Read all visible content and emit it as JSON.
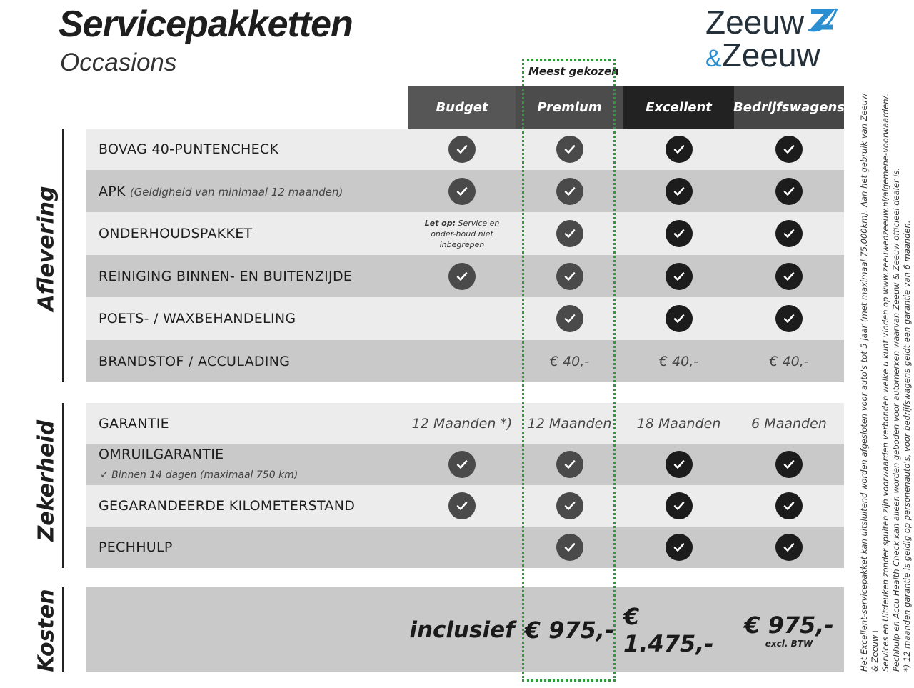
{
  "header": {
    "title": "Servicepakketten",
    "subtitle": "Occasions",
    "logo_text": "Zeeuw & Zeeuw",
    "most_chosen": "Meest gekozen"
  },
  "columns": [
    "Budget",
    "Premium",
    "Excellent",
    "Bedrijfswagens"
  ],
  "colors": {
    "premium_frame": "#2e9a3a",
    "logo_blue": "#2a8ed0",
    "logo_dark": "#24303a"
  },
  "sections": {
    "aflevering": "Aflevering",
    "zekerheid": "Zekerheid",
    "kosten": "Kosten"
  },
  "rows": [
    {
      "label": "BOVAG 40-PUNTENCHECK",
      "cells": [
        true,
        true,
        true,
        true
      ]
    },
    {
      "label": "APK",
      "sub": "(Geldigheid van minimaal 12 maanden)",
      "cells": [
        true,
        true,
        true,
        true
      ]
    },
    {
      "label": "ONDERHOUDSPAKKET",
      "note_bold": "Let op:",
      "note": "Service en onder-houd niet inbegrepen",
      "cells": [
        false,
        true,
        true,
        true
      ]
    },
    {
      "label": "REINIGING BINNEN- EN BUITENZIJDE",
      "cells": [
        true,
        true,
        true,
        true
      ]
    },
    {
      "label": "POETS- / WAXBEHANDELING",
      "cells": [
        false,
        true,
        true,
        true
      ]
    },
    {
      "label": "BRANDSTOF / ACCULADING",
      "cells": [
        "",
        "€ 40,-",
        "€ 40,-",
        "€ 40,-"
      ]
    },
    {
      "label": "GARANTIE",
      "cells": [
        "12 Maanden *)",
        "12 Maanden",
        "18 Maanden",
        "6 Maanden"
      ]
    },
    {
      "label": "OMRUILGARANTIE",
      "sub": "✓  Binnen 14 dagen (maximaal 750 km)",
      "cells": [
        true,
        true,
        true,
        true
      ]
    },
    {
      "label": "GEGARANDEERDE KILOMETERSTAND",
      "cells": [
        true,
        true,
        true,
        true
      ]
    },
    {
      "label": "PECHHULP",
      "cells": [
        false,
        true,
        true,
        true
      ]
    }
  ],
  "costs": {
    "cells": [
      "inclusief",
      "€ 975,-",
      "€ 1.475,-",
      "€ 975,-"
    ],
    "excl": "excl. BTW"
  },
  "footnotes": [
    "Het Excellent-servicepakket kan uitsluitend worden afgesloten voor auto's tot 5 jaar (met maximaal 75.000km). Aan het gebruik van Zeeuw & Zeeuw+",
    "Services en Uitdeuken zonder spuiten zijn voorwaarden verbonden welke u kunt vinden op www.zeeuwenzeeuw.nl/algemene-voorwaarden/.",
    "Pechhulp en Accu Health Check kan alleen worden geboden voor automerken waarvan Zeeuw & Zeeuw officieel dealer is.",
    "*) 12 maanden garantie is geldig op personenauto's, voor bedrijfswagens geldt een garantie van 6 maanden."
  ]
}
